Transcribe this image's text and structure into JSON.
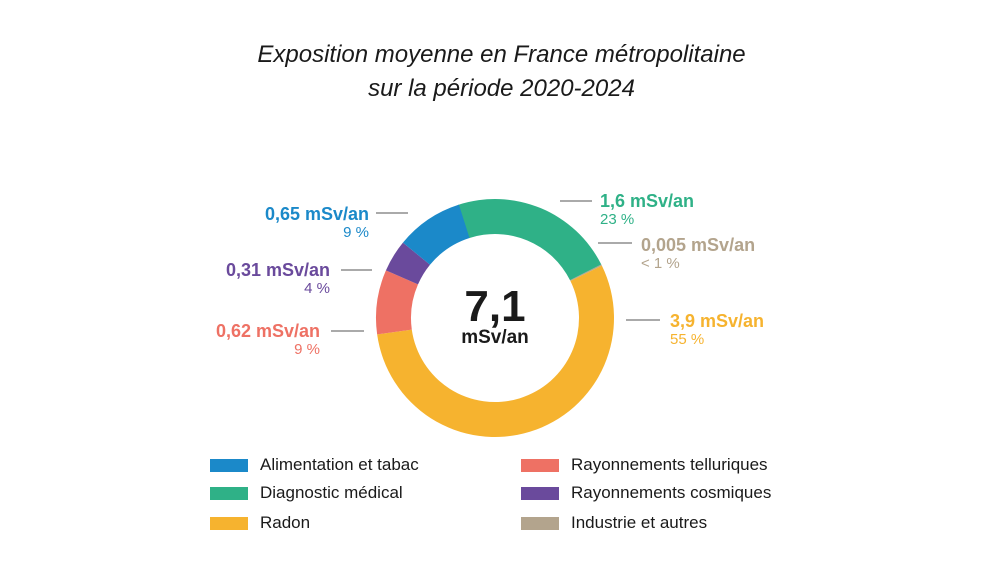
{
  "title_line1": "Exposition moyenne en France métropolitaine",
  "title_line2": "sur la période 2020-2024",
  "center_value": "7,1",
  "center_unit": "mSv/an",
  "chart_data": {
    "type": "pie",
    "title": "Exposition moyenne en France métropolitaine sur la période 2020-2024",
    "categories": [
      "Diagnostic médical",
      "Industrie et autres",
      "Radon",
      "Rayonnements telluriques",
      "Rayonnements cosmiques",
      "Alimentation et tabac"
    ],
    "values": [
      1.6,
      0.005,
      3.9,
      0.62,
      0.31,
      0.65
    ],
    "value_labels": [
      "1,6 mSv/an",
      "0,005 mSv/an",
      "3,9 mSv/an",
      "0,62 mSv/an",
      "0,31 mSv/an",
      "0,65 mSv/an"
    ],
    "percent_labels": [
      "23 %",
      "< 1 %",
      "55 %",
      "9 %",
      "4 %",
      "9 %"
    ],
    "colors": [
      "#2fb187",
      "#b3a48d",
      "#f6b32f",
      "#ee7164",
      "#6a4a9c",
      "#1b89c9"
    ],
    "legend": [
      {
        "label": "Alimentation et tabac",
        "color": "#1b89c9"
      },
      {
        "label": "Rayonnements telluriques",
        "color": "#ee7164"
      },
      {
        "label": "Diagnostic médical",
        "color": "#2fb187"
      },
      {
        "label": "Rayonnements cosmiques",
        "color": "#6a4a9c"
      },
      {
        "label": "Radon",
        "color": "#f6b32f"
      },
      {
        "label": "Industrie et autres",
        "color": "#b3a48d"
      }
    ],
    "legend_position": "bottom"
  }
}
